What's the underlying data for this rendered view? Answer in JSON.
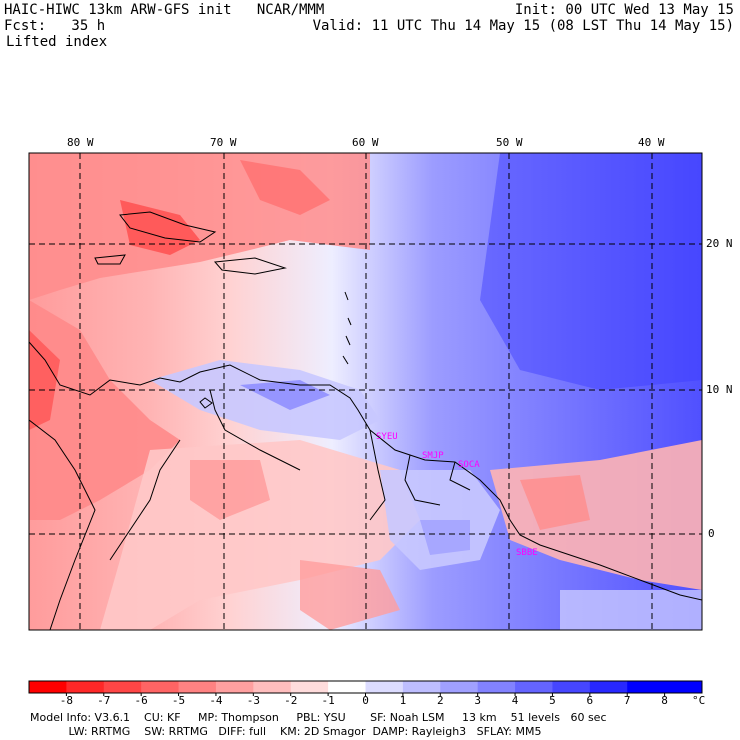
{
  "header": {
    "line1_left": "HAIC-HIWC 13km ARW-GFS init   NCAR/MMM",
    "line1_right": "Init: 00 UTC Wed 13 May 15",
    "line2_left": "Fcst:   35 h",
    "line2_right": "Valid: 11 UTC Thu 14 May 15 (08 LST Thu 14 May 15)",
    "line3": "Lifted index"
  },
  "map": {
    "lon_labels": [
      "80 W",
      "70 W",
      "60 W",
      "50 W",
      "40 W"
    ],
    "lat_labels": [
      "20 N",
      "10 N",
      "0"
    ],
    "stations": [
      "SYEU",
      "SMJP",
      "SOCA",
      "SBBE"
    ],
    "colors": {
      "frame": "#000000",
      "grid": "#000000",
      "station": "#ff00ff"
    }
  },
  "colorbar": {
    "tick_labels": [
      "-8",
      "-7",
      "-6",
      "-5",
      "-4",
      "-3",
      "-2",
      "-1",
      "0",
      "1",
      "2",
      "3",
      "4",
      "5",
      "6",
      "7",
      "8"
    ],
    "unit": "°C",
    "colors": [
      "#ff0000",
      "#ff2828",
      "#ff4646",
      "#ff6464",
      "#ff8282",
      "#ffa0a0",
      "#ffbebe",
      "#ffdcdc",
      "#ffffff",
      "#dcdcff",
      "#bebeff",
      "#a0a0ff",
      "#8282ff",
      "#6464ff",
      "#4646ff",
      "#2828ff",
      "#0000ff"
    ]
  },
  "footer": {
    "line1": "Model Info: V3.6.1    CU: KF     MP: Thompson     PBL: YSU       SF: Noah LSM     13 km    51 levels   60 sec",
    "line2": "           LW: RRTMG    SW: RRTMG   DIFF: full    KM: 2D Smagor  DAMP: Rayleigh3   SFLAY: MM5"
  }
}
